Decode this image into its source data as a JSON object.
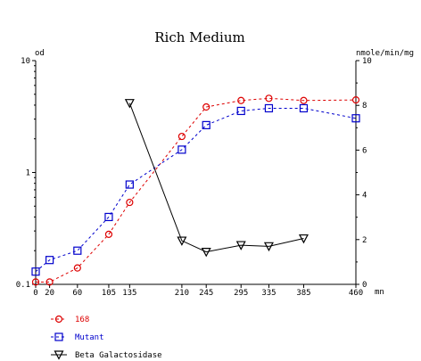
{
  "chart_data": {
    "type": "line",
    "title": "Rich Medium",
    "x_unit": "mn",
    "x": [
      0,
      20,
      60,
      105,
      135,
      210,
      245,
      295,
      335,
      385,
      460
    ],
    "x_ticks": [
      0,
      20,
      60,
      105,
      135,
      210,
      245,
      295,
      335,
      385,
      460
    ],
    "xlim": [
      0,
      460
    ],
    "left_axis": {
      "label": "od",
      "scale": "log",
      "ylim": [
        0.1,
        10
      ],
      "ticks": [
        {
          "value": 0.1,
          "label": "0.1"
        },
        {
          "value": 1,
          "label": "1"
        },
        {
          "value": 10,
          "label": "10"
        }
      ]
    },
    "right_axis": {
      "label": "nmole/min/mg",
      "scale": "linear",
      "ylim": [
        0,
        10
      ],
      "ticks": [
        {
          "value": 0,
          "label": "0"
        },
        {
          "value": 2,
          "label": "2"
        },
        {
          "value": 4,
          "label": "4"
        },
        {
          "value": 6,
          "label": "6"
        },
        {
          "value": 8,
          "label": "8"
        },
        {
          "value": 10,
          "label": "10"
        }
      ]
    },
    "grid": false,
    "legend_position": "bottom-left",
    "series": [
      {
        "name": "168",
        "axis": "left",
        "marker": "circle",
        "line": "dashed",
        "color": "#dd0000",
        "x": [
          0,
          20,
          60,
          105,
          135,
          210,
          245,
          295,
          335,
          385,
          460
        ],
        "values": [
          0.105,
          0.105,
          0.14,
          0.28,
          0.54,
          2.1,
          3.85,
          4.4,
          4.6,
          4.4,
          4.45
        ]
      },
      {
        "name": "Mutant",
        "axis": "left",
        "marker": "square",
        "line": "dashed",
        "color": "#0000cc",
        "x": [
          0,
          20,
          60,
          105,
          135,
          210,
          245,
          295,
          335,
          385,
          460
        ],
        "values": [
          0.13,
          0.165,
          0.2,
          0.4,
          0.78,
          1.6,
          2.65,
          3.55,
          3.75,
          3.75,
          3.05
        ]
      },
      {
        "name": "Beta Galactosidase",
        "axis": "right",
        "marker": "triangle-down",
        "line": "solid",
        "color": "#000000",
        "x": [
          135,
          210,
          245,
          295,
          335,
          385
        ],
        "values": [
          8.1,
          1.95,
          1.45,
          1.75,
          1.7,
          2.05
        ]
      }
    ]
  }
}
